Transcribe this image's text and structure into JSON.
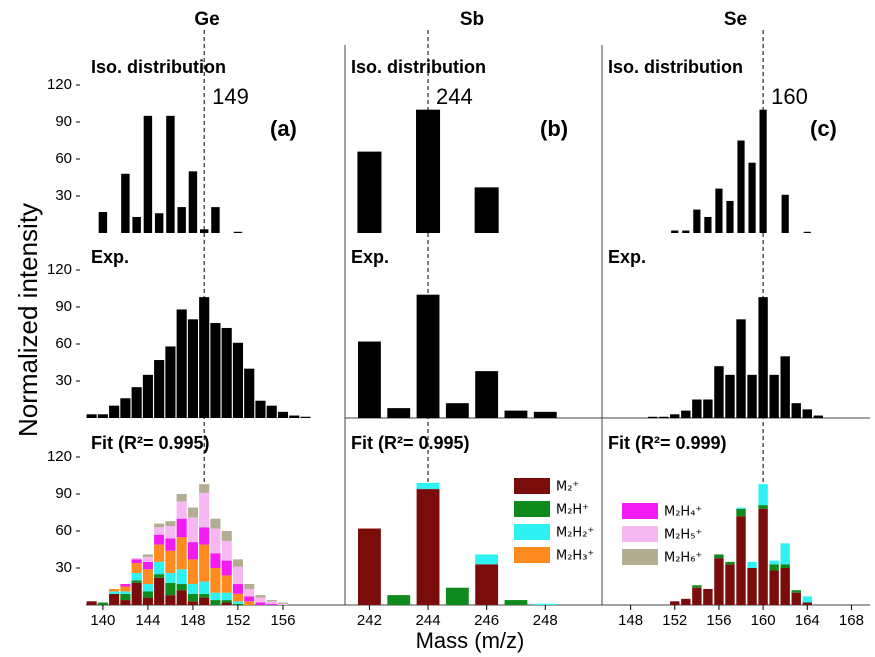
{
  "ylabel": "Normalized intensity",
  "xlabel": "Mass (m/z)",
  "chart_data": [
    {
      "type": "bar",
      "title": "Ge",
      "subtitle": "Iso. distribution",
      "annotation": "(a)",
      "vline": 149,
      "color": "#000000",
      "x": [
        140,
        142,
        143,
        144,
        145,
        146,
        147,
        148,
        149,
        150,
        152
      ],
      "values": [
        17,
        48,
        13,
        95,
        16,
        95,
        21,
        50,
        3,
        21,
        1
      ],
      "xlim": [
        138.5,
        160
      ],
      "ylim": [
        0,
        120
      ],
      "yticks": [
        30,
        60,
        90,
        120
      ]
    },
    {
      "type": "bar",
      "title": "Sb",
      "subtitle": "Iso. distribution",
      "annotation": "(b)",
      "vline": 244,
      "color": "#000000",
      "x": [
        242,
        244,
        246
      ],
      "values": [
        66,
        100,
        37
      ],
      "xlim": [
        241.2,
        249.8
      ],
      "ylim": [
        0,
        120
      ]
    },
    {
      "type": "bar",
      "title": "Se",
      "subtitle": "Iso. distribution",
      "annotation": "(c)",
      "vline": 160,
      "color": "#000000",
      "x": [
        152,
        153,
        154,
        155,
        156,
        157,
        158,
        159,
        160,
        162,
        164
      ],
      "values": [
        2,
        2,
        19,
        13,
        36,
        26,
        75,
        57,
        100,
        31,
        1
      ],
      "xlim": [
        145.5,
        169.5
      ],
      "ylim": [
        0,
        120
      ]
    },
    {
      "type": "bar",
      "subtitle": "Exp.",
      "color": "#000000",
      "x": [
        139,
        140,
        141,
        142,
        143,
        144,
        145,
        146,
        147,
        148,
        149,
        150,
        151,
        152,
        153,
        154,
        155,
        156,
        157,
        158
      ],
      "values": [
        3,
        3,
        10,
        16,
        25,
        35,
        47,
        58,
        88,
        80,
        98,
        77,
        73,
        61,
        40,
        14,
        10,
        5,
        2,
        1
      ],
      "xlim": [
        138.5,
        160
      ],
      "ylim": [
        0,
        120
      ],
      "yticks": [
        30,
        60,
        90,
        120
      ]
    },
    {
      "type": "bar",
      "subtitle": "Exp.",
      "color": "#000000",
      "x": [
        242,
        243,
        244,
        245,
        246,
        247,
        248
      ],
      "values": [
        62,
        8,
        100,
        12,
        38,
        6,
        5
      ],
      "xlim": [
        241.2,
        249.8
      ],
      "ylim": [
        0,
        120
      ]
    },
    {
      "type": "bar",
      "subtitle": "Exp.",
      "color": "#000000",
      "x": [
        150,
        151,
        152,
        153,
        154,
        155,
        156,
        157,
        158,
        159,
        160,
        161,
        162,
        163,
        164,
        165
      ],
      "values": [
        1,
        1,
        3,
        6,
        15,
        15,
        42,
        35,
        80,
        35,
        98,
        35,
        50,
        12,
        7,
        2
      ],
      "xlim": [
        145.5,
        169.5
      ],
      "ylim": [
        0,
        120
      ]
    },
    {
      "type": "bar",
      "subtitle": "Fit (R²= 0.995)",
      "x": [
        139,
        140,
        141,
        142,
        143,
        144,
        145,
        146,
        147,
        148,
        149,
        150,
        151,
        152,
        153,
        154,
        155,
        156,
        157,
        158
      ],
      "series": [
        {
          "name": "M₂⁺",
          "color": "#7b0c0c",
          "values": [
            3,
            0,
            9,
            4,
            18,
            6,
            22,
            8,
            12,
            3,
            6,
            0,
            2,
            0,
            0,
            0,
            0,
            0,
            0,
            0
          ]
        },
        {
          "name": "M₂H⁺",
          "color": "#0f8a1c",
          "values": [
            0,
            2,
            0,
            5,
            2,
            5,
            3,
            10,
            5,
            6,
            3,
            4,
            2,
            1,
            0,
            0,
            0,
            0,
            0,
            0
          ]
        },
        {
          "name": "M₂H₂⁺",
          "color": "#2ef2f2",
          "values": [
            0,
            0,
            2,
            2,
            6,
            6,
            10,
            8,
            12,
            8,
            10,
            6,
            6,
            2,
            0,
            0,
            0,
            0,
            0,
            0
          ]
        },
        {
          "name": "M₂H₃⁺",
          "color": "#ff8a1e",
          "values": [
            0,
            0,
            2,
            4,
            8,
            12,
            14,
            18,
            26,
            20,
            30,
            20,
            14,
            6,
            3,
            0,
            0,
            0,
            0,
            0
          ]
        },
        {
          "name": "M₂H₄⁺",
          "color": "#f21cf2",
          "values": [
            0,
            0,
            0,
            2,
            3,
            6,
            8,
            10,
            15,
            14,
            14,
            12,
            12,
            8,
            4,
            2,
            1,
            0,
            0,
            0
          ]
        },
        {
          "name": "M₂H₅⁺",
          "color": "#f6b8f0",
          "values": [
            0,
            0,
            0,
            0,
            1,
            4,
            6,
            10,
            14,
            20,
            28,
            20,
            16,
            14,
            6,
            4,
            2,
            1,
            0,
            0
          ]
        },
        {
          "name": "M₂H₆⁺",
          "color": "#b3ad92",
          "values": [
            0,
            0,
            0,
            0,
            0,
            2,
            3,
            4,
            6,
            8,
            7,
            8,
            8,
            6,
            4,
            2,
            1,
            1,
            0,
            0
          ]
        }
      ],
      "xlim": [
        138.5,
        160
      ],
      "ylim": [
        0,
        120
      ],
      "yticks": [
        30,
        60,
        90,
        120
      ],
      "xticks": [
        140,
        144,
        148,
        152,
        156
      ]
    },
    {
      "type": "bar",
      "subtitle": "Fit (R²= 0.995)",
      "x": [
        242,
        243,
        244,
        245,
        246,
        247,
        248
      ],
      "series": [
        {
          "name": "M₂⁺",
          "color": "#7b0c0c",
          "values": [
            62,
            0,
            94,
            0,
            33,
            0,
            0
          ]
        },
        {
          "name": "M₂H⁺",
          "color": "#0f8a1c",
          "values": [
            0,
            8,
            0,
            14,
            0,
            4,
            0
          ]
        },
        {
          "name": "M₂H₂⁺",
          "color": "#2ef2f2",
          "values": [
            0,
            0,
            5,
            0,
            8,
            0,
            1
          ]
        }
      ],
      "xlim": [
        241.2,
        249.8
      ],
      "ylim": [
        0,
        120
      ],
      "xticks": [
        242,
        244,
        246,
        248
      ]
    },
    {
      "type": "bar",
      "subtitle": "Fit (R²= 0.999)",
      "x": [
        152,
        153,
        154,
        155,
        156,
        157,
        158,
        159,
        160,
        161,
        162,
        163,
        164
      ],
      "series": [
        {
          "name": "M₂⁺",
          "color": "#7b0c0c",
          "values": [
            3,
            5,
            14,
            13,
            38,
            33,
            72,
            30,
            78,
            28,
            30,
            10,
            2
          ]
        },
        {
          "name": "M₂H⁺",
          "color": "#0f8a1c",
          "values": [
            0,
            0,
            2,
            0,
            3,
            2,
            6,
            0,
            3,
            5,
            3,
            2,
            0
          ]
        },
        {
          "name": "M₂H₂⁺",
          "color": "#2ef2f2",
          "values": [
            0,
            0,
            0,
            0,
            0,
            0,
            1,
            5,
            17,
            3,
            17,
            0,
            5
          ]
        }
      ],
      "xlim": [
        145.5,
        169.5
      ],
      "ylim": [
        0,
        120
      ],
      "xticks": [
        148,
        152,
        156,
        160,
        164,
        168
      ]
    }
  ]
}
